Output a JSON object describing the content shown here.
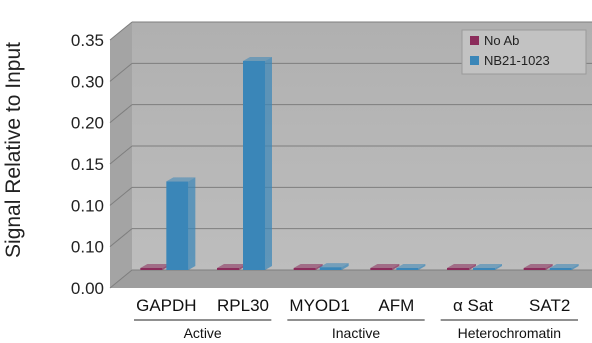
{
  "chart_data": {
    "type": "bar",
    "title": "",
    "ylabel": "Signal Relative to Input",
    "xlabel": "",
    "ylim": [
      0,
      0.35
    ],
    "y_ticks": [
      "0.35",
      "0.30",
      "0.20",
      "0.15",
      "0.10",
      "0.10",
      "0.00"
    ],
    "categories": [
      "GAPDH",
      "RPL30",
      "MYOD1",
      "AFM",
      "α Sat",
      "SAT2"
    ],
    "groups": [
      {
        "label": "Active",
        "categories": [
          "GAPDH",
          "RPL30"
        ]
      },
      {
        "label": "Inactive",
        "categories": [
          "MYOD1",
          "AFM"
        ]
      },
      {
        "label": "Heterochromatin",
        "categories": [
          "α Sat",
          "SAT2"
        ]
      }
    ],
    "series": [
      {
        "name": "No Ab",
        "color": "#8b2c5b",
        "values": [
          0.002,
          0.002,
          0.002,
          0.002,
          0.002,
          0.002
        ]
      },
      {
        "name": "NB21-1023",
        "color": "#3a86b8",
        "values": [
          0.125,
          0.295,
          0.004,
          0.002,
          0.002,
          0.002
        ]
      }
    ],
    "legend": "top-right",
    "grid": true,
    "style": "3d"
  }
}
